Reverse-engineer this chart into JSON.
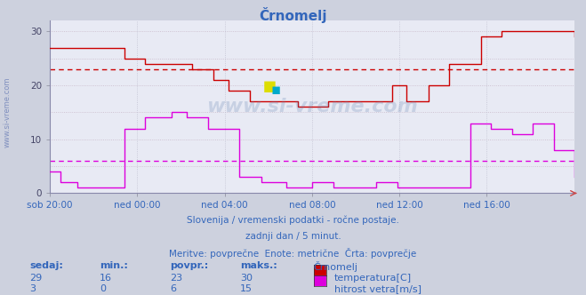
{
  "title": "Črnomelj",
  "bg_color": "#cdd1de",
  "plot_bg_color": "#e8eaf4",
  "grid_color_main": "#b0b4c8",
  "grid_color_minor": "#d0c8d8",
  "x_labels": [
    "sob 20:00",
    "ned 00:00",
    "ned 04:00",
    "ned 08:00",
    "ned 12:00",
    "ned 16:00"
  ],
  "x_ticks_norm": [
    0.0,
    0.1667,
    0.3333,
    0.5,
    0.6667,
    0.8333
  ],
  "ylim": [
    0,
    32
  ],
  "yticks": [
    0,
    10,
    20,
    30
  ],
  "temp_color": "#cc0000",
  "wind_color": "#dd00dd",
  "temp_avg_line": 23,
  "wind_avg_line": 6,
  "subtitle1": "Slovenija / vremenski podatki - ročne postaje.",
  "subtitle2": "zadnji dan / 5 minut.",
  "subtitle3": "Meritve: povprečne  Enote: metrične  Črta: povprečje",
  "legend_title": "Črnomelj",
  "text_color": "#3366bb",
  "watermark": "www.si-vreme.com",
  "temp_bp": [
    0,
    0.02,
    0.14,
    0.18,
    0.27,
    0.31,
    0.34,
    0.38,
    0.43,
    0.47,
    0.5,
    0.53,
    0.57,
    0.62,
    0.65,
    0.68,
    0.72,
    0.76,
    0.82,
    0.86,
    0.9,
    1.0
  ],
  "temp_vals": [
    27,
    27,
    25,
    24,
    23,
    21,
    19,
    17,
    17,
    16,
    16,
    17,
    17,
    17,
    20,
    17,
    20,
    24,
    29,
    30,
    30,
    29
  ],
  "wind_bp": [
    0,
    0.02,
    0.05,
    0.14,
    0.18,
    0.23,
    0.26,
    0.3,
    0.36,
    0.4,
    0.45,
    0.5,
    0.54,
    0.58,
    0.62,
    0.66,
    0.69,
    0.73,
    0.77,
    0.8,
    0.84,
    0.88,
    0.92,
    0.96,
    1.0
  ],
  "wind_vals": [
    4,
    2,
    1,
    12,
    14,
    15,
    14,
    12,
    3,
    2,
    1,
    2,
    1,
    1,
    2,
    1,
    1,
    1,
    1,
    13,
    12,
    11,
    13,
    8,
    3
  ],
  "n_points": 289,
  "headers": [
    "sedaj:",
    "min.:",
    "povpr.:",
    "maks.:",
    "Črnomelj"
  ],
  "temp_stats": [
    29,
    16,
    23,
    30
  ],
  "wind_stats": [
    3,
    0,
    6,
    15
  ],
  "temp_label": "temperatura[C]",
  "wind_label": "hitrost vetra[m/s]"
}
